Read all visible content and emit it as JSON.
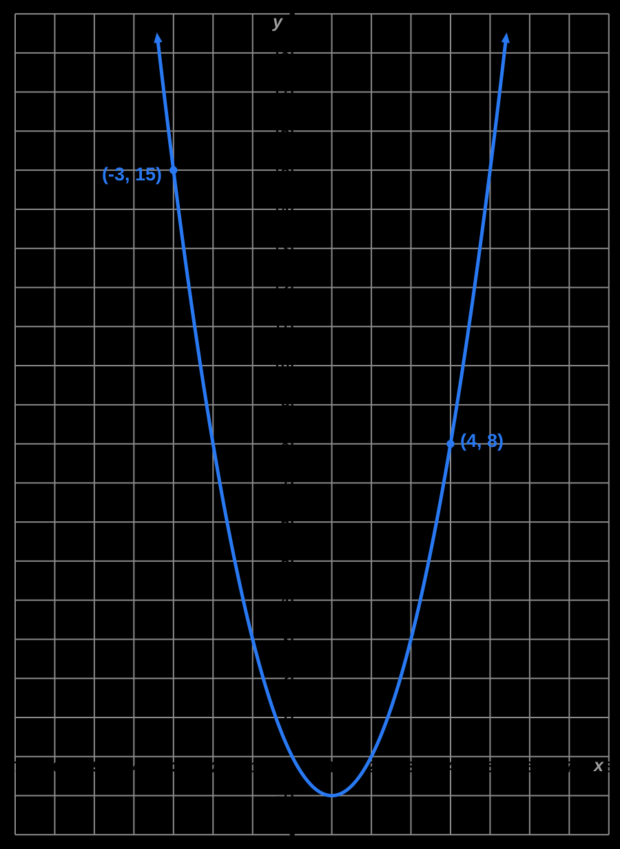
{
  "figure": {
    "background_color": "#000000",
    "grid_color": "#8a8a8a",
    "curve_color": "#2979f3",
    "axis_letter_color": "#9e9e9e",
    "hidden_ink_color": "#000000",
    "x_axis_letter": "x",
    "y_axis_letter": "y",
    "point_labels": [
      {
        "text": "(-3, 15)",
        "point_x": -3,
        "point_y": 15,
        "side": "left"
      },
      {
        "text": "(4, 8)",
        "point_x": 4,
        "point_y": 8,
        "side": "right"
      }
    ]
  },
  "chart_data": {
    "type": "line",
    "title": "",
    "xlabel": "x",
    "ylabel": "y",
    "xlim": [
      -7,
      8
    ],
    "ylim": [
      -2,
      19
    ],
    "grid": true,
    "grid_step": 1,
    "curve": {
      "kind": "parabola",
      "equation": "y = (x - 1)^2 - 1",
      "vertex": [
        1,
        -1
      ],
      "opens": "up",
      "x_intercepts": [
        0,
        2
      ],
      "arrows_both_ends": true,
      "draw_domain": [
        -3.393,
        5.393
      ],
      "labeled_points": [
        {
          "label": "(-3, 15)",
          "x": -3,
          "y": 15
        },
        {
          "label": "(4, 8)",
          "x": 4,
          "y": 8
        }
      ]
    },
    "x_tick_values_hidden": [
      -7,
      -6,
      -5,
      -4,
      -3,
      -2,
      -1,
      1,
      2,
      3,
      4,
      5,
      6,
      7,
      8
    ],
    "y_tick_values_hidden": [
      -1,
      1,
      2,
      3,
      4,
      5,
      6,
      7,
      8,
      9,
      10,
      11,
      12,
      13,
      14,
      15,
      16,
      17,
      18
    ]
  }
}
